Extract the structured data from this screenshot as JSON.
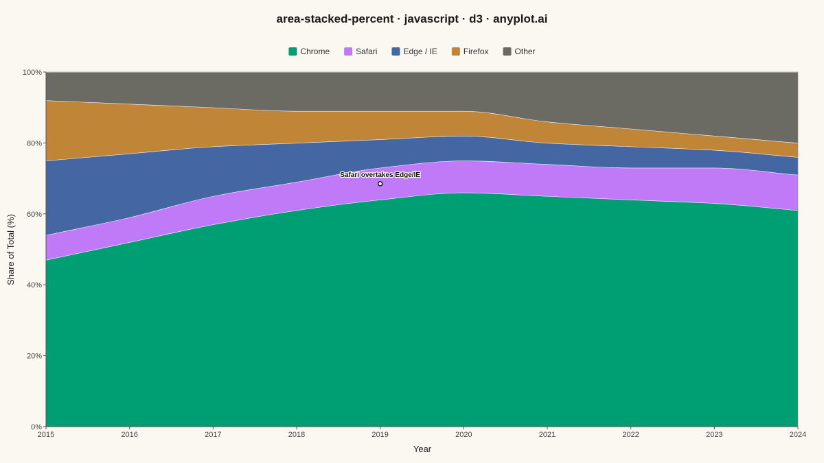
{
  "chart_data": {
    "type": "area",
    "stacked": "percent",
    "title": "area-stacked-percent · javascript · d3 · anyplot.ai",
    "xlabel": "Year",
    "ylabel": "Share of Total (%)",
    "x": [
      2015,
      2016,
      2017,
      2018,
      2019,
      2020,
      2021,
      2022,
      2023,
      2024
    ],
    "ylim": [
      0,
      100
    ],
    "yticks": [
      "0%",
      "20%",
      "40%",
      "60%",
      "80%",
      "100%"
    ],
    "ytick_values": [
      0,
      20,
      40,
      60,
      80,
      100
    ],
    "grid": true,
    "legend_position": "top-center",
    "series": [
      {
        "name": "Chrome",
        "color": "#009E73",
        "values": [
          47,
          52,
          57,
          61,
          64,
          66,
          65,
          64,
          63,
          61
        ]
      },
      {
        "name": "Safari",
        "color": "#C07AF8",
        "values": [
          7,
          7,
          8,
          8,
          9,
          9,
          9,
          9,
          10,
          10
        ]
      },
      {
        "name": "Edge / IE",
        "color": "#4467A3",
        "values": [
          21,
          18,
          14,
          11,
          8,
          7,
          6,
          6,
          5,
          5
        ]
      },
      {
        "name": "Firefox",
        "color": "#C08537",
        "values": [
          17,
          14,
          11,
          9,
          8,
          7,
          6,
          5,
          4,
          4
        ]
      },
      {
        "name": "Other",
        "color": "#6B6B63",
        "values": [
          8,
          9,
          10,
          11,
          11,
          11,
          14,
          16,
          18,
          20
        ]
      }
    ],
    "annotation": {
      "text": "Safari overtakes Edge/IE",
      "x": 2019,
      "y": 68.5
    }
  }
}
